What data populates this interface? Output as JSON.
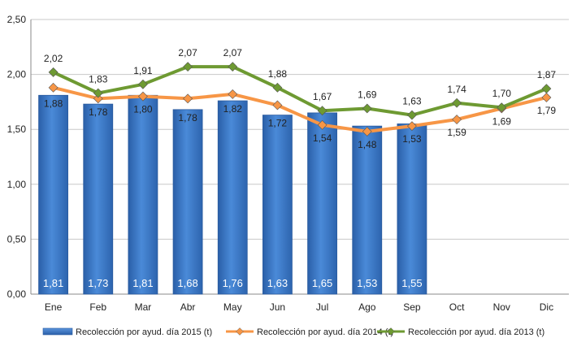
{
  "chart_data": {
    "type": "bar",
    "categories": [
      "Ene",
      "Feb",
      "Mar",
      "Abr",
      "May",
      "Jun",
      "Jul",
      "Ago",
      "Sep",
      "Oct",
      "Nov",
      "Dic"
    ],
    "y_ticks": [
      "0,00",
      "0,50",
      "1,00",
      "1,50",
      "2,00",
      "2,50"
    ],
    "ylim": [
      0,
      2.5
    ],
    "grid": true,
    "legend_position": "bottom",
    "series": [
      {
        "name": "Recolección por ayud. día 2015 (t)",
        "type": "bar",
        "color": "#3C78C8",
        "values": [
          1.81,
          1.73,
          1.81,
          1.68,
          1.76,
          1.63,
          1.65,
          1.53,
          1.55,
          null,
          null,
          null
        ],
        "labels": [
          "1,81",
          "1,73",
          "1,81",
          "1,68",
          "1,76",
          "1,63",
          "1,65",
          "1,53",
          "1,55",
          "",
          "",
          ""
        ]
      },
      {
        "name": "Recolección por ayud. día 2014 (t)",
        "type": "line",
        "color": "#F79646",
        "values": [
          1.88,
          1.78,
          1.8,
          1.78,
          1.82,
          1.72,
          1.54,
          1.48,
          1.53,
          1.59,
          1.69,
          1.79
        ],
        "labels": [
          "1,88",
          "1,78",
          "1,80",
          "1,78",
          "1,82",
          "1,72",
          "1,54",
          "1,48",
          "1,53",
          "1,59",
          "1,69",
          "1,79"
        ]
      },
      {
        "name": "Recolección por ayud. día 2013 (t)",
        "type": "line",
        "color": "#6E9A32",
        "values": [
          2.02,
          1.83,
          1.91,
          2.07,
          2.07,
          1.88,
          1.67,
          1.69,
          1.63,
          1.74,
          1.7,
          1.87
        ],
        "labels": [
          "2,02",
          "1,83",
          "1,91",
          "2,07",
          "2,07",
          "1,88",
          "1,67",
          "1,69",
          "1,63",
          "1,74",
          "1,70",
          "1,87"
        ]
      }
    ]
  }
}
